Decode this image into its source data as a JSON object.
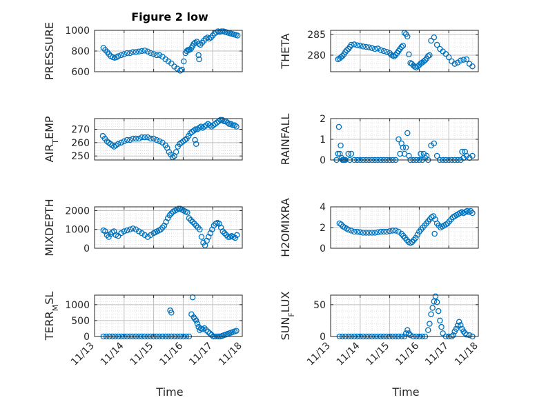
{
  "figure": {
    "title": "Figure 2 low",
    "xlabel": "Time"
  },
  "chart_data": [
    {
      "type": "scatter",
      "ylabel": "PRESSURE",
      "ylabel_segments": [
        {
          "t": "PRESSURE",
          "s": false
        }
      ],
      "xlim": [
        0,
        5
      ],
      "x_tick_labels": [],
      "ylim": [
        600,
        1000
      ],
      "y_ticks": [
        600,
        800,
        1000
      ],
      "y_tick_labels": [
        "600",
        "800",
        "1000"
      ],
      "grid": true,
      "x": [
        0.3,
        0.36,
        0.43,
        0.49,
        0.55,
        0.62,
        0.68,
        0.74,
        0.8,
        0.9,
        1.0,
        1.1,
        1.2,
        1.3,
        1.4,
        1.5,
        1.6,
        1.7,
        1.8,
        1.9,
        2.0,
        2.1,
        2.2,
        2.3,
        2.4,
        2.5,
        2.6,
        2.7,
        2.8,
        2.9,
        2.96,
        3.02,
        3.08,
        3.12,
        3.16,
        3.2,
        3.24,
        3.28,
        3.32,
        3.36,
        3.4,
        3.46,
        3.52,
        3.58,
        3.64,
        3.7,
        3.76,
        3.82,
        3.88,
        3.94,
        4.0,
        4.06,
        4.12,
        4.18,
        4.24,
        4.3,
        4.36,
        4.42,
        4.48,
        4.54,
        4.6,
        4.66,
        4.72,
        4.78,
        4.84,
        3.52,
        3.54
      ],
      "y": [
        830,
        810,
        790,
        770,
        750,
        740,
        735,
        740,
        750,
        760,
        770,
        780,
        780,
        790,
        790,
        795,
        800,
        805,
        795,
        780,
        770,
        760,
        760,
        745,
        720,
        700,
        680,
        650,
        630,
        610,
        620,
        700,
        780,
        800,
        810,
        810,
        815,
        830,
        850,
        870,
        880,
        890,
        870,
        860,
        880,
        900,
        920,
        930,
        920,
        930,
        950,
        970,
        980,
        990,
        985,
        990,
        990,
        985,
        980,
        975,
        970,
        965,
        960,
        955,
        950,
        760,
        720
      ]
    },
    {
      "type": "scatter",
      "ylabel": "THETA",
      "ylabel_segments": [
        {
          "t": "THETA",
          "s": false
        }
      ],
      "xlim": [
        0,
        5
      ],
      "x_tick_labels": [],
      "ylim": [
        276,
        286
      ],
      "y_ticks": [
        280,
        285
      ],
      "y_tick_labels": [
        "280",
        "285"
      ],
      "grid": true,
      "x": [
        0.25,
        0.3,
        0.35,
        0.4,
        0.45,
        0.5,
        0.55,
        0.6,
        0.65,
        0.7,
        0.8,
        0.9,
        1.0,
        1.1,
        1.2,
        1.3,
        1.4,
        1.5,
        1.6,
        1.7,
        1.8,
        1.9,
        2.0,
        2.05,
        2.1,
        2.15,
        2.2,
        2.25,
        2.3,
        2.35,
        2.4,
        2.45,
        2.5,
        2.55,
        2.6,
        2.65,
        2.7,
        2.75,
        2.8,
        2.85,
        2.9,
        2.95,
        3.0,
        3.05,
        3.1,
        3.15,
        3.2,
        3.25,
        3.3,
        3.35,
        3.4,
        3.5,
        3.6,
        3.7,
        3.8,
        3.9,
        4.0,
        4.1,
        4.2,
        4.3,
        4.4,
        4.5,
        4.6,
        4.7,
        4.8
      ],
      "y": [
        279,
        279.2,
        279.5,
        279.8,
        280.2,
        280.8,
        281.2,
        281.5,
        282.0,
        282.5,
        282.6,
        282.4,
        282.3,
        282.1,
        282.0,
        281.9,
        281.7,
        281.5,
        281.6,
        281.2,
        281.0,
        280.8,
        280.5,
        280.1,
        279.9,
        279.7,
        280.0,
        280.5,
        281.0,
        281.5,
        282.0,
        282.3,
        285.4,
        285.1,
        284.5,
        280.2,
        278.1,
        277.9,
        277.5,
        277.2,
        277.0,
        277.3,
        277.6,
        278.0,
        278.2,
        278.5,
        278.8,
        279.2,
        279.8,
        280.0,
        283.5,
        284.3,
        282.5,
        281.5,
        280.9,
        280.3,
        279.5,
        278.5,
        277.9,
        278.2,
        278.7,
        278.9,
        279.0,
        277.9,
        277.3
      ]
    },
    {
      "type": "scatter",
      "ylabel": "AIR_TEMP",
      "ylabel_segments": [
        {
          "t": "AIR",
          "s": false
        },
        {
          "t": "T",
          "s": true
        },
        {
          "t": "EMP",
          "s": false
        }
      ],
      "xlim": [
        0,
        5
      ],
      "x_tick_labels": [],
      "ylim": [
        247,
        278
      ],
      "y_ticks": [
        250,
        260,
        270
      ],
      "y_tick_labels": [
        "250",
        "260",
        "270"
      ],
      "grid": true,
      "x": [
        0.28,
        0.35,
        0.42,
        0.48,
        0.54,
        0.6,
        0.66,
        0.72,
        0.8,
        0.9,
        1.0,
        1.1,
        1.2,
        1.3,
        1.4,
        1.5,
        1.6,
        1.7,
        1.8,
        1.9,
        2.0,
        2.1,
        2.2,
        2.3,
        2.4,
        2.46,
        2.52,
        2.58,
        2.64,
        2.7,
        2.76,
        2.82,
        2.88,
        2.94,
        3.0,
        3.06,
        3.12,
        3.18,
        3.24,
        3.3,
        3.36,
        3.42,
        3.48,
        3.54,
        3.6,
        3.66,
        3.72,
        3.78,
        3.84,
        3.9,
        3.96,
        4.02,
        4.08,
        4.14,
        4.2,
        4.26,
        4.32,
        4.38,
        4.44,
        4.5,
        4.56,
        4.62,
        4.68,
        4.74,
        4.8,
        3.4,
        3.44
      ],
      "y": [
        265,
        263,
        261,
        260,
        259,
        258,
        257,
        258,
        259,
        260,
        261,
        262,
        262,
        263,
        263,
        263,
        264,
        264,
        264,
        263,
        263,
        262,
        261,
        260,
        258,
        256,
        253,
        251,
        249,
        250,
        253,
        257,
        259,
        260,
        261,
        262,
        263,
        265,
        267,
        268,
        269,
        270,
        270,
        271,
        272,
        271,
        272,
        273,
        274,
        273,
        272,
        273,
        274,
        275,
        276,
        277,
        277,
        276,
        276,
        275,
        274,
        274,
        273,
        273,
        272,
        262,
        259
      ]
    },
    {
      "type": "scatter",
      "ylabel": "RAINFALL",
      "ylabel_segments": [
        {
          "t": "RAINFALL",
          "s": false
        }
      ],
      "xlim": [
        0,
        5
      ],
      "x_tick_labels": [],
      "ylim": [
        0,
        2
      ],
      "y_ticks": [
        0,
        1,
        2
      ],
      "y_tick_labels": [
        "0",
        "1",
        "2"
      ],
      "grid": true,
      "x": [
        0.2,
        0.25,
        0.28,
        0.31,
        0.34,
        0.37,
        0.4,
        0.43,
        0.46,
        0.5,
        0.6,
        0.65,
        0.7,
        0.8,
        0.9,
        1.0,
        1.1,
        1.2,
        1.3,
        1.4,
        1.5,
        1.6,
        1.7,
        1.8,
        1.9,
        2.0,
        2.1,
        2.2,
        2.3,
        2.35,
        2.4,
        2.45,
        2.5,
        2.55,
        2.6,
        2.65,
        2.7,
        2.8,
        2.9,
        3.0,
        3.05,
        3.1,
        3.15,
        3.2,
        3.25,
        3.3,
        3.4,
        3.5,
        3.6,
        3.7,
        3.8,
        3.9,
        4.0,
        4.1,
        4.2,
        4.3,
        4.4,
        4.45,
        4.5,
        4.55,
        4.6,
        4.7,
        4.8
      ],
      "y": [
        0,
        0.3,
        1.6,
        0.3,
        0.7,
        0.1,
        0,
        0,
        0,
        0,
        0.3,
        0,
        0.3,
        0,
        0,
        0,
        0,
        0,
        0,
        0,
        0,
        0,
        0,
        0,
        0,
        0,
        0,
        0,
        1.0,
        0.3,
        0.8,
        0.6,
        0.3,
        0.6,
        1.3,
        0.2,
        0,
        0,
        0,
        0,
        0.3,
        0,
        0.3,
        0.1,
        0.2,
        0,
        0.7,
        0.8,
        0.2,
        0,
        0,
        0,
        0,
        0,
        0,
        0,
        0,
        0.4,
        0.1,
        0.4,
        0.2,
        0.1,
        0.2
      ]
    },
    {
      "type": "scatter",
      "ylabel": "MIXDEPTH",
      "ylabel_segments": [
        {
          "t": "MIXDEPTH",
          "s": false
        }
      ],
      "xlim": [
        0,
        5
      ],
      "x_tick_labels": [],
      "ylim": [
        0,
        2200
      ],
      "y_ticks": [
        0,
        1000,
        2000
      ],
      "y_tick_labels": [
        "0",
        "1000",
        "2000"
      ],
      "grid": true,
      "x": [
        0.3,
        0.36,
        0.42,
        0.48,
        0.54,
        0.6,
        0.66,
        0.72,
        0.8,
        0.9,
        1.0,
        1.1,
        1.2,
        1.3,
        1.4,
        1.5,
        1.6,
        1.7,
        1.8,
        1.9,
        2.0,
        2.06,
        2.12,
        2.18,
        2.24,
        2.3,
        2.36,
        2.42,
        2.48,
        2.54,
        2.6,
        2.66,
        2.72,
        2.78,
        2.84,
        2.9,
        2.96,
        3.02,
        3.08,
        3.14,
        3.2,
        3.26,
        3.32,
        3.38,
        3.44,
        3.5,
        3.56,
        3.62,
        3.68,
        3.74,
        3.8,
        3.86,
        3.92,
        3.98,
        4.04,
        4.1,
        4.16,
        4.22,
        4.28,
        4.34,
        4.4,
        4.46,
        4.52,
        4.58,
        4.64,
        4.7,
        4.76,
        4.82
      ],
      "y": [
        950,
        900,
        700,
        600,
        750,
        850,
        900,
        700,
        650,
        800,
        900,
        950,
        1000,
        1050,
        1000,
        900,
        800,
        700,
        600,
        700,
        800,
        850,
        900,
        950,
        1000,
        1100,
        1200,
        1400,
        1600,
        1750,
        1850,
        1950,
        2000,
        2050,
        2100,
        2100,
        2050,
        2000,
        1950,
        1900,
        1600,
        1500,
        1400,
        1300,
        1200,
        1100,
        1000,
        600,
        300,
        150,
        400,
        600,
        800,
        1000,
        1200,
        1300,
        1350,
        1300,
        1100,
        900,
        800,
        700,
        600,
        600,
        650,
        600,
        550,
        700
      ]
    },
    {
      "type": "scatter",
      "ylabel": "H2OMIXRA",
      "ylabel_segments": [
        {
          "t": "H2OMIXRA",
          "s": false
        }
      ],
      "xlim": [
        0,
        5
      ],
      "x_tick_labels": [],
      "ylim": [
        0,
        4
      ],
      "y_ticks": [
        0,
        2,
        4
      ],
      "y_tick_labels": [
        "0",
        "2",
        "4"
      ],
      "grid": true,
      "x": [
        0.3,
        0.36,
        0.42,
        0.48,
        0.54,
        0.6,
        0.7,
        0.8,
        0.9,
        1.0,
        1.1,
        1.2,
        1.3,
        1.4,
        1.5,
        1.6,
        1.7,
        1.8,
        1.9,
        2.0,
        2.1,
        2.2,
        2.3,
        2.4,
        2.46,
        2.52,
        2.58,
        2.64,
        2.7,
        2.76,
        2.82,
        2.88,
        2.94,
        3.0,
        3.06,
        3.12,
        3.18,
        3.24,
        3.3,
        3.36,
        3.42,
        3.48,
        3.54,
        3.6,
        3.66,
        3.72,
        3.78,
        3.84,
        3.9,
        3.96,
        4.02,
        4.08,
        4.14,
        4.2,
        4.26,
        4.32,
        4.38,
        4.44,
        4.5,
        4.56,
        4.62,
        4.68,
        4.74,
        4.8,
        3.52
      ],
      "y": [
        2.4,
        2.3,
        2.1,
        2.0,
        1.9,
        1.8,
        1.7,
        1.6,
        1.6,
        1.55,
        1.5,
        1.5,
        1.5,
        1.5,
        1.5,
        1.55,
        1.6,
        1.6,
        1.6,
        1.65,
        1.7,
        1.7,
        1.6,
        1.4,
        1.2,
        1.0,
        0.8,
        0.6,
        0.5,
        0.6,
        0.8,
        1.0,
        1.3,
        1.6,
        1.8,
        2.0,
        2.2,
        2.4,
        2.6,
        2.8,
        3.0,
        3.1,
        2.8,
        2.4,
        2.2,
        2.0,
        2.1,
        2.2,
        2.3,
        2.4,
        2.6,
        2.8,
        3.0,
        3.1,
        3.2,
        3.3,
        3.4,
        3.5,
        3.4,
        3.5,
        3.6,
        3.5,
        3.6,
        3.4,
        1.4
      ]
    },
    {
      "type": "scatter",
      "ylabel": "TERR_MSL",
      "ylabel_segments": [
        {
          "t": "TERR",
          "s": false
        },
        {
          "t": "M",
          "s": true
        },
        {
          "t": "SL",
          "s": false
        }
      ],
      "xlim": [
        0,
        5
      ],
      "x_tick_labels": [
        "11/13",
        "11/14",
        "11/15",
        "11/16",
        "11/17",
        "11/18"
      ],
      "ylim": [
        0,
        1300
      ],
      "y_ticks": [
        0,
        500,
        1000
      ],
      "y_tick_labels": [
        "0",
        "500",
        "1000"
      ],
      "grid": true,
      "x": [
        0.3,
        0.4,
        0.5,
        0.6,
        0.7,
        0.8,
        0.9,
        1.0,
        1.1,
        1.2,
        1.3,
        1.4,
        1.5,
        1.6,
        1.7,
        1.8,
        1.9,
        2.0,
        2.1,
        2.2,
        2.3,
        2.4,
        2.5,
        2.6,
        2.7,
        2.8,
        2.9,
        3.0,
        3.1,
        3.2,
        2.56,
        2.6,
        3.28,
        3.32,
        3.36,
        3.4,
        3.44,
        3.48,
        3.52,
        3.56,
        3.6,
        3.66,
        3.72,
        3.78,
        3.84,
        3.9,
        3.96,
        4.02,
        4.08,
        4.14,
        4.2,
        4.26,
        4.32,
        4.38,
        4.44,
        4.5,
        4.56,
        4.62,
        4.68,
        4.74,
        4.8
      ],
      "y": [
        0,
        0,
        0,
        0,
        0,
        0,
        0,
        0,
        0,
        0,
        0,
        0,
        0,
        0,
        0,
        0,
        0,
        0,
        0,
        0,
        0,
        0,
        0,
        0,
        0,
        0,
        0,
        0,
        0,
        0,
        820,
        750,
        700,
        1230,
        600,
        550,
        500,
        400,
        300,
        200,
        250,
        230,
        260,
        200,
        150,
        100,
        50,
        0,
        0,
        0,
        0,
        0,
        20,
        40,
        60,
        80,
        100,
        120,
        140,
        160,
        180
      ]
    },
    {
      "type": "scatter",
      "ylabel": "SUN_FLUX",
      "ylabel_segments": [
        {
          "t": "SUN",
          "s": false
        },
        {
          "t": "F",
          "s": true
        },
        {
          "t": "LUX",
          "s": false
        }
      ],
      "xlim": [
        0,
        5
      ],
      "x_tick_labels": [
        "11/13",
        "11/14",
        "11/15",
        "11/16",
        "11/17",
        "11/18"
      ],
      "ylim": [
        0,
        65
      ],
      "y_ticks": [
        0,
        50
      ],
      "y_tick_labels": [
        "0",
        "50"
      ],
      "grid": true,
      "x": [
        0.3,
        0.4,
        0.5,
        0.6,
        0.7,
        0.8,
        0.9,
        1.0,
        1.1,
        1.2,
        1.3,
        1.4,
        1.5,
        1.6,
        1.7,
        1.8,
        1.9,
        2.0,
        2.1,
        2.2,
        2.3,
        2.4,
        2.5,
        2.55,
        2.6,
        2.65,
        2.7,
        2.8,
        2.9,
        3.0,
        3.1,
        3.2,
        3.3,
        3.35,
        3.4,
        3.45,
        3.5,
        3.55,
        3.6,
        3.65,
        3.7,
        3.75,
        3.8,
        3.9,
        4.0,
        4.1,
        4.15,
        4.2,
        4.25,
        4.3,
        4.35,
        4.4,
        4.45,
        4.5,
        4.55,
        4.6,
        4.7,
        4.8
      ],
      "y": [
        0,
        0,
        0,
        0,
        0,
        0,
        0,
        0,
        0,
        0,
        0,
        0,
        0,
        0,
        0,
        0,
        0,
        0,
        0,
        0,
        0,
        0,
        0,
        5,
        10,
        5,
        2,
        0,
        0,
        0,
        0,
        0,
        10,
        20,
        35,
        45,
        55,
        63,
        54,
        40,
        25,
        15,
        5,
        0,
        0,
        0,
        2,
        8,
        12,
        17,
        23,
        18,
        12,
        8,
        5,
        3,
        2,
        0
      ]
    }
  ]
}
